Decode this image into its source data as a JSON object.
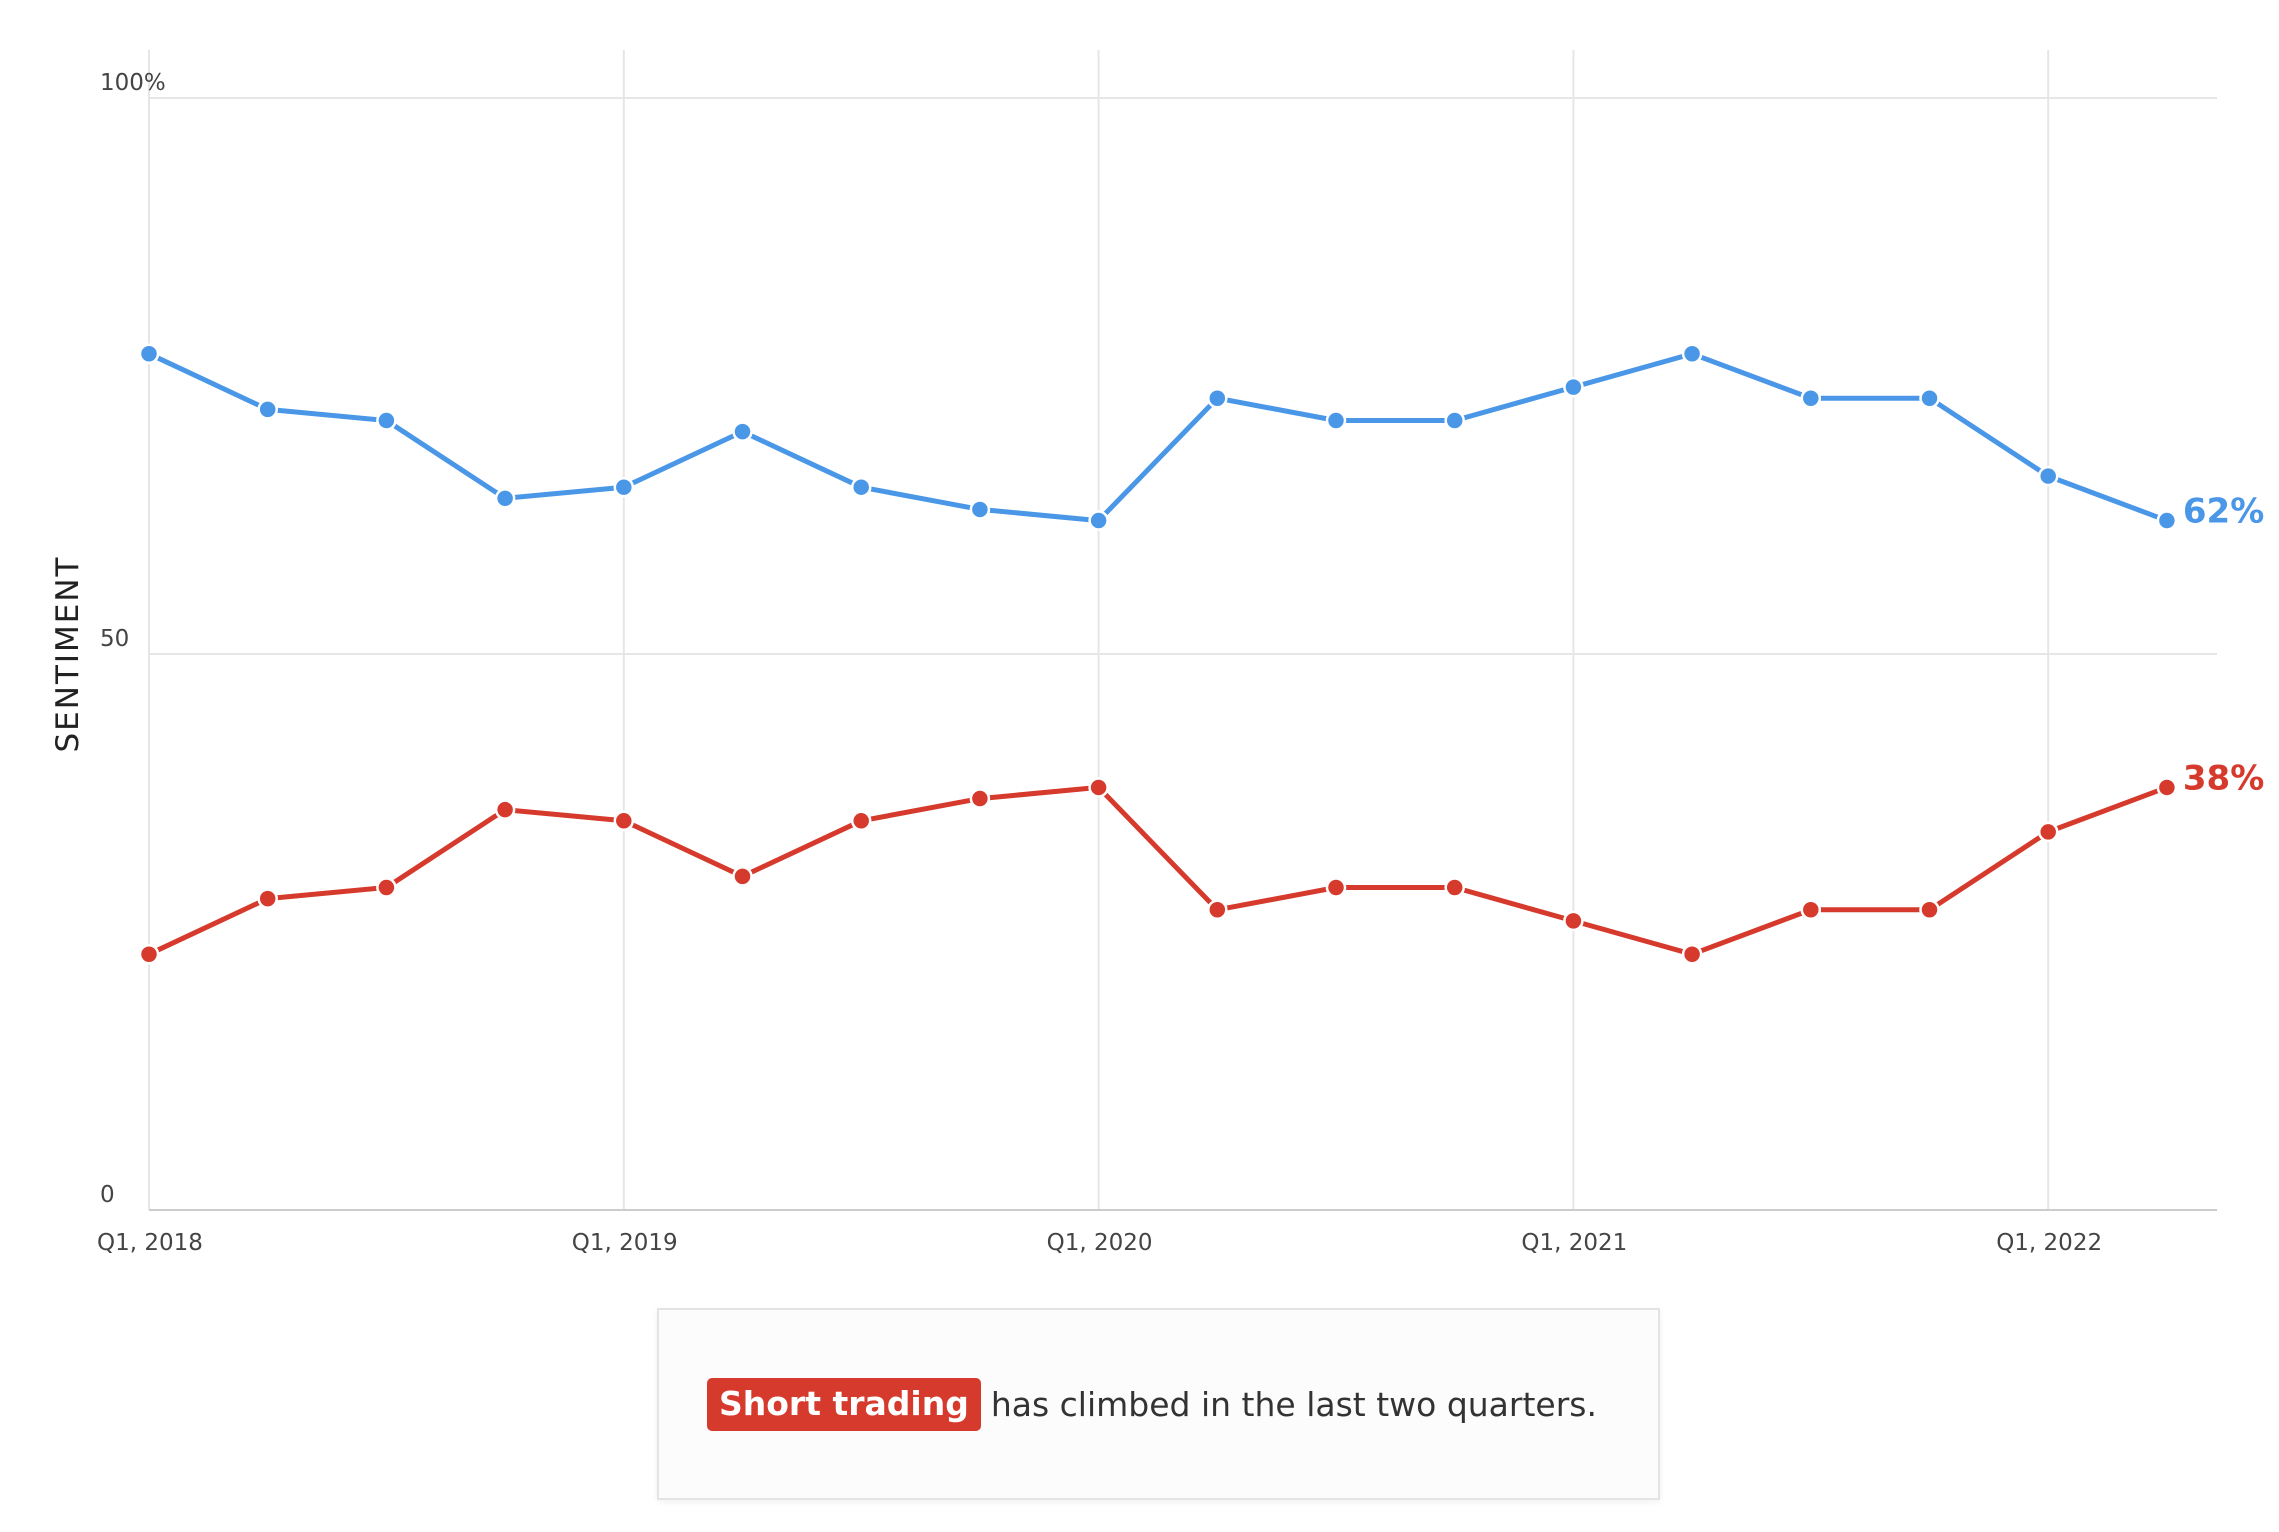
{
  "chart_data": {
    "type": "line",
    "ylabel": "SENTIMENT",
    "xlabel": "",
    "ylim": [
      0,
      100
    ],
    "yticks": [
      {
        "value": 100,
        "label": "100%"
      },
      {
        "value": 50,
        "label": "50"
      },
      {
        "value": 0,
        "label": "0"
      }
    ],
    "xticks": [
      {
        "index": 0,
        "label": "Q1, 2018"
      },
      {
        "index": 4,
        "label": "Q1, 2019"
      },
      {
        "index": 8,
        "label": "Q1, 2020"
      },
      {
        "index": 12,
        "label": "Q1, 2021"
      },
      {
        "index": 16,
        "label": "Q1, 2022"
      }
    ],
    "grid": true,
    "series": [
      {
        "key": "long",
        "color": "#4a97e8",
        "end_label": "62%",
        "values": [
          77,
          72,
          71,
          64,
          65,
          70,
          65,
          63,
          62,
          73,
          71,
          71,
          74,
          77,
          73,
          73,
          66,
          62
        ]
      },
      {
        "key": "short",
        "color": "#d63a2c",
        "end_label": "38%",
        "values": [
          23,
          28,
          29,
          36,
          35,
          30,
          35,
          37,
          38,
          27,
          29,
          29,
          26,
          23,
          27,
          27,
          34,
          38
        ]
      }
    ]
  },
  "callout": {
    "highlight": "Short trading",
    "text": "has climbed in the last two quarters."
  }
}
